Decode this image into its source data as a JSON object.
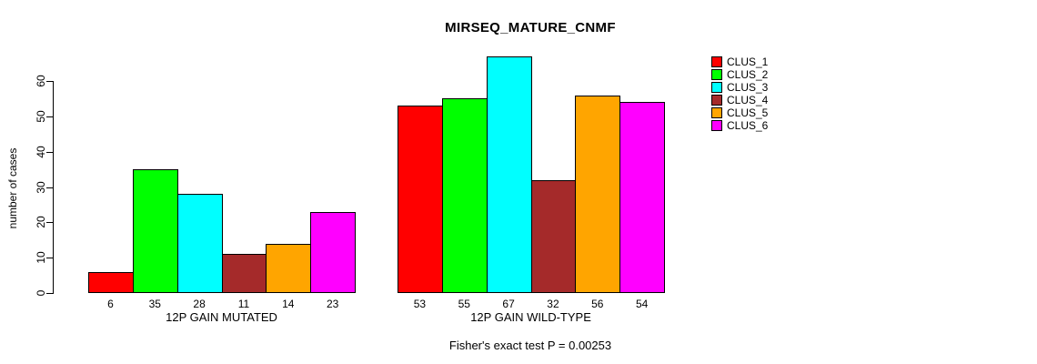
{
  "chart_data": {
    "type": "bar",
    "title": "MIRSEQ_MATURE_CNMF",
    "ylabel": "number of cases",
    "xlabel": "",
    "ylim": [
      0,
      60
    ],
    "yticks": [
      0,
      10,
      20,
      30,
      40,
      50,
      60
    ],
    "grid": false,
    "legend_position": "right",
    "series_colors": [
      "#FF0000",
      "#00FF00",
      "#00FFFF",
      "#A52A2A",
      "#FFA500",
      "#FF00FF"
    ],
    "legend": [
      {
        "label": "CLUS_1",
        "color": "#FF0000"
      },
      {
        "label": "CLUS_2",
        "color": "#00FF00"
      },
      {
        "label": "CLUS_3",
        "color": "#00FFFF"
      },
      {
        "label": "CLUS_4",
        "color": "#A52A2A"
      },
      {
        "label": "CLUS_5",
        "color": "#FFA500"
      },
      {
        "label": "CLUS_6",
        "color": "#FF00FF"
      }
    ],
    "groups": [
      {
        "label": "12P GAIN MUTATED",
        "bar_value_labels": [
          "6",
          "35",
          "28",
          "11",
          "14",
          "23"
        ],
        "values": [
          6,
          35,
          28,
          11,
          14,
          23
        ]
      },
      {
        "label": "12P GAIN WILD-TYPE",
        "bar_value_labels": [
          "53",
          "55",
          "67",
          "32",
          "56",
          "54"
        ],
        "values": [
          53,
          55,
          67,
          32,
          56,
          54
        ]
      }
    ],
    "footnote": "Fisher's exact test P = 0.00253"
  }
}
